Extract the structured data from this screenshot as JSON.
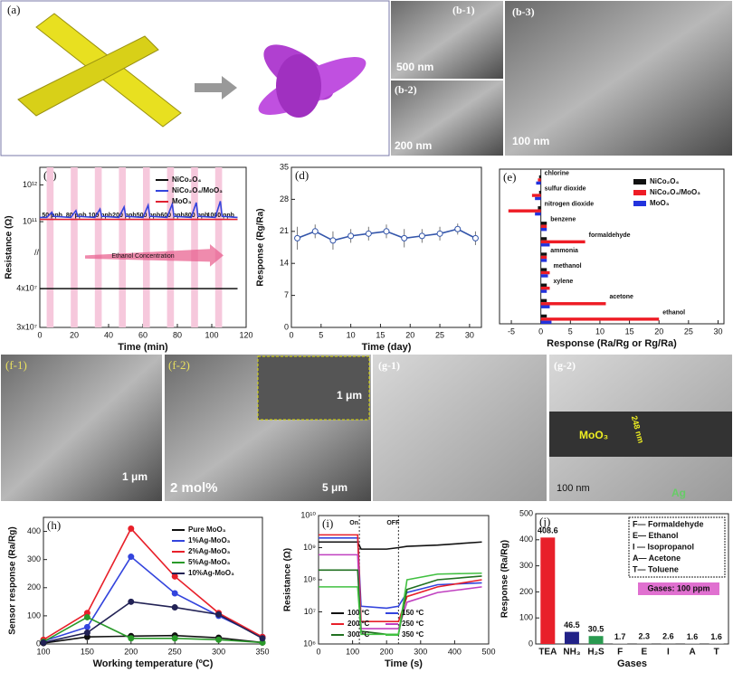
{
  "image_panels": [
    {
      "label": "(a)"
    },
    {
      "label": "(b-1)",
      "scale_bar": "500 nm"
    },
    {
      "label": "(b-2)",
      "scale_bar": "200 nm"
    },
    {
      "label": "(b-3)",
      "scale_bar": "100 nm"
    },
    {
      "label": "(f-1)",
      "scale_bar": "1 μm"
    },
    {
      "label": "(f-2)",
      "scale_bar": "5 μm",
      "inset_scale_bar": "1 μm",
      "note": "2 mol%"
    },
    {
      "label": "(g-1)"
    },
    {
      "label": "(g-2)",
      "scale_bar": "100 nm",
      "notes": [
        "MoO₃",
        "248 nm",
        "Ag"
      ]
    }
  ],
  "chart_data": [
    {
      "type": "line",
      "label": "(c)",
      "x_label": "Time (min)",
      "y_label": "Resistance (Ω)",
      "ylog": true,
      "ybreak": [
        50000000,
        20000000000
      ],
      "ylim": [
        30000000,
        3000000000000
      ],
      "yticks": [
        {
          "value": 30000000,
          "label": "3x10⁷"
        },
        {
          "value": 40000000,
          "label": "4x10⁷"
        },
        {
          "value": 100000000000,
          "label": "10¹¹"
        },
        {
          "value": 1000000000000,
          "label": "10¹²"
        }
      ],
      "xlim": [
        0,
        120
      ],
      "xticks": [
        0,
        20,
        40,
        60,
        80,
        100,
        120
      ],
      "legend": "upper right",
      "annotations": [
        {
          "text": "50 ppb",
          "x": 4
        },
        {
          "text": "80 ppb",
          "x": 18
        },
        {
          "text": "100 ppb",
          "x": 32
        },
        {
          "text": "200 ppb",
          "x": 46
        },
        {
          "text": "500 ppb",
          "x": 60
        },
        {
          "text": "600 ppb",
          "x": 74
        },
        {
          "text": "800 ppb",
          "x": 88
        },
        {
          "text": "1000 ppb",
          "x": 102
        }
      ],
      "arrow_text": "Ethanol Concentration",
      "x": [
        0,
        4,
        7,
        8,
        18,
        21,
        22,
        32,
        35,
        36,
        46,
        49,
        50,
        60,
        63,
        64,
        74,
        77,
        78,
        88,
        91,
        92,
        102,
        105,
        106,
        115
      ],
      "series": [
        {
          "name": "NiCo₂O₄",
          "color": "#111111",
          "values": [
            40000000,
            40000000,
            40000000,
            40000000,
            40000000,
            40000000,
            40000000,
            40000000,
            40000000,
            40000000,
            40000000,
            40000000,
            40000000,
            40000000,
            40000000,
            40000000,
            40000000,
            40000000,
            40000000,
            40000000,
            40000000,
            40000000,
            40000000,
            40000000,
            40000000,
            40000000
          ]
        },
        {
          "name": "NiCo₂O₄/MoO₃",
          "color": "#3344dd",
          "values": [
            130000000000,
            130000000000,
            180000000000,
            140000000000,
            130000000000,
            200000000000,
            140000000000,
            130000000000,
            220000000000,
            140000000000,
            130000000000,
            250000000000,
            140000000000,
            130000000000,
            280000000000,
            140000000000,
            130000000000,
            300000000000,
            140000000000,
            130000000000,
            330000000000,
            140000000000,
            130000000000,
            360000000000,
            140000000000,
            130000000000
          ]
        },
        {
          "name": "MoO₃",
          "color": "#e02030",
          "values": [
            115000000000,
            115000000000,
            115000000000,
            115000000000,
            115000000000,
            115000000000,
            115000000000,
            115000000000,
            115000000000,
            115000000000,
            115000000000,
            115000000000,
            115000000000,
            115000000000,
            115000000000,
            115000000000,
            115000000000,
            115000000000,
            115000000000,
            115000000000,
            115000000000,
            115000000000,
            115000000000,
            115000000000,
            115000000000,
            115000000000
          ]
        }
      ]
    },
    {
      "type": "line",
      "label": "(d)",
      "x_label": "Time (day)",
      "y_label": "Response (Rg/Ra)",
      "markers": true,
      "xlim": [
        0,
        32
      ],
      "xticks": [
        0,
        5,
        10,
        15,
        20,
        25,
        30
      ],
      "ylim": [
        0,
        35
      ],
      "yticks": [
        0,
        7,
        14,
        21,
        28,
        35
      ],
      "x": [
        1,
        4,
        7,
        10,
        13,
        16,
        19,
        22,
        25,
        28,
        31
      ],
      "series": [
        {
          "name": "Response",
          "color": "#3355aa",
          "values": [
            19.5,
            21,
            19,
            20,
            20.5,
            21,
            19.5,
            20,
            20.5,
            21.5,
            19.5
          ],
          "errors": [
            2.5,
            1.5,
            2,
            1.5,
            1.5,
            1.5,
            2,
            1.5,
            1.5,
            1.2,
            1.5
          ]
        }
      ]
    },
    {
      "type": "bar",
      "orientation": "horizontal",
      "label": "(e)",
      "x_label": "Response (Ra/Rg or Rg/Ra)",
      "legend": "upper right",
      "xlim": [
        -7,
        31
      ],
      "xticks": [
        -5,
        0,
        5,
        10,
        15,
        20,
        25,
        30
      ],
      "categories": [
        "chlorine",
        "sulfur dioxide",
        "nitrogen dioxide",
        "benzene",
        "formaldehyde",
        "ammonia",
        "methanol",
        "xylene",
        "acetone",
        "ethanol"
      ],
      "series": [
        {
          "name": "NiCo₂O₄",
          "color": "#111111",
          "values": [
            -0.3,
            -0.3,
            -0.5,
            1,
            1,
            1,
            1,
            1,
            1,
            1
          ]
        },
        {
          "name": "NiCo₂O₄/MoO₃",
          "color": "#ee1c25",
          "values": [
            -0.5,
            -1.5,
            -5.5,
            1,
            7.5,
            1,
            1.5,
            1.5,
            11,
            20
          ]
        },
        {
          "name": "MoO₃",
          "color": "#2233dd",
          "values": [
            -0.8,
            -1,
            -1,
            1,
            1.5,
            1,
            1.2,
            1,
            1.5,
            1.8
          ]
        }
      ]
    },
    {
      "type": "line",
      "label": "(h)",
      "x_label": "Working temperature (ºC)",
      "y_label": "Sensor response (Ra/Rg)",
      "markers": true,
      "legend": "upper right",
      "xlim": [
        100,
        350
      ],
      "xticks": [
        100,
        150,
        200,
        250,
        300,
        350
      ],
      "ylim": [
        0,
        450
      ],
      "yticks": [
        0,
        100,
        200,
        300,
        400
      ],
      "x": [
        100,
        150,
        200,
        250,
        300,
        350
      ],
      "series": [
        {
          "name": "Pure MoO₃",
          "color": "#111111",
          "values": [
            3,
            25,
            28,
            30,
            22,
            5
          ]
        },
        {
          "name": "1%Ag-MoO₃",
          "color": "#3344dd",
          "values": [
            10,
            60,
            310,
            180,
            100,
            25
          ]
        },
        {
          "name": "2%Ag-MoO₃",
          "color": "#e8202a",
          "values": [
            15,
            110,
            410,
            240,
            110,
            25
          ]
        },
        {
          "name": "5%Ag-MoO₃",
          "color": "#2a9a2a",
          "values": [
            8,
            95,
            20,
            20,
            15,
            5
          ]
        },
        {
          "name": "10%Ag-MoO₃",
          "color": "#222255",
          "values": [
            5,
            40,
            150,
            130,
            105,
            20
          ]
        }
      ]
    },
    {
      "type": "line",
      "label": "(i)",
      "x_label": "Time (s)",
      "y_label": "Resistance (Ω)",
      "ylog": true,
      "legend": "lower left",
      "legend_columns": 2,
      "xlim": [
        0,
        500
      ],
      "xticks": [
        0,
        100,
        200,
        300,
        400,
        500
      ],
      "ylim": [
        1000000,
        10000000000
      ],
      "yticks": [
        {
          "value": 1000000,
          "label": "10⁶"
        },
        {
          "value": 10000000,
          "label": "10⁷"
        },
        {
          "value": 100000000,
          "label": "10⁸"
        },
        {
          "value": 1000000000,
          "label": "10⁹"
        },
        {
          "value": 10000000000,
          "label": "10¹⁰"
        }
      ],
      "annotations": [
        {
          "text": "On",
          "x": 120
        },
        {
          "text": "OFF",
          "x": 235
        }
      ],
      "x": [
        0,
        115,
        125,
        200,
        235,
        260,
        350,
        480
      ],
      "series": [
        {
          "name": "100 ºC",
          "color": "#111111",
          "values": [
            1500000000,
            1500000000,
            900000000,
            900000000,
            1000000000,
            1100000000,
            1200000000,
            1500000000
          ]
        },
        {
          "name": "150 ºC",
          "color": "#3344dd",
          "values": [
            2000000000,
            2000000000,
            15000000,
            13000000,
            15000000,
            40000000,
            70000000,
            80000000
          ]
        },
        {
          "name": "200 ºC",
          "color": "#e8202a",
          "values": [
            2500000000,
            2500000000,
            5000000,
            5000000,
            5000000,
            30000000,
            60000000,
            100000000
          ]
        },
        {
          "name": "250 ºC",
          "color": "#c040c0",
          "values": [
            600000000,
            600000000,
            3000000,
            3000000,
            3000000,
            20000000,
            40000000,
            60000000
          ]
        },
        {
          "name": "300 ºC",
          "color": "#207020",
          "values": [
            200000000,
            200000000,
            2500000,
            2000000,
            2000000,
            50000000,
            100000000,
            130000000
          ]
        },
        {
          "name": "350 ºC",
          "color": "#40c040",
          "values": [
            60000000,
            60000000,
            2000000,
            2000000,
            2000000,
            100000000,
            150000000,
            160000000
          ]
        }
      ]
    },
    {
      "type": "bar",
      "label": "(j)",
      "x_label": "Gases",
      "y_label": "Response (Ra/Rg)",
      "ylim": [
        0,
        500
      ],
      "yticks": [
        0,
        100,
        200,
        300,
        400,
        500
      ],
      "categories": [
        "TEA",
        "NH₃",
        "H₂S",
        "F",
        "E",
        "I",
        "A",
        "T"
      ],
      "values": [
        408.6,
        46.5,
        30.5,
        1.7,
        2.3,
        2.6,
        1.6,
        1.6
      ],
      "colors": [
        "#e8202a",
        "#222288",
        "#2a9a50",
        "#888888",
        "#888888",
        "#888888",
        "#888888",
        "#888888"
      ],
      "notes": [
        "F— Formaldehyde",
        "E— Ethanol",
        "I — Isopropanol",
        "A— Acetone",
        "T— Toluene"
      ],
      "badge": "Gases: 100 ppm"
    }
  ]
}
